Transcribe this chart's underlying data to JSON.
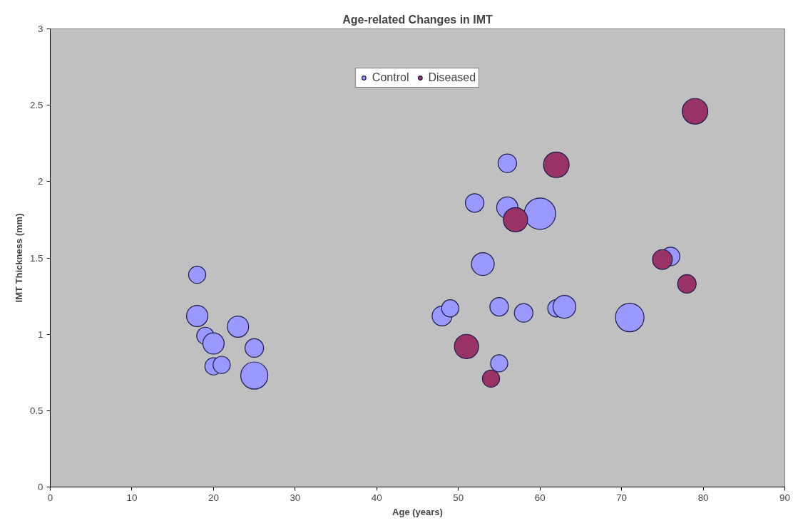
{
  "chart_data": {
    "type": "bubble",
    "title": "Age-related Changes in IMT",
    "xlabel": "Age (years)",
    "ylabel": "IMT Thickness (mm)",
    "xlim": [
      0,
      90
    ],
    "xticks": [
      0,
      10,
      20,
      30,
      40,
      50,
      60,
      70,
      80,
      90
    ],
    "ylim": [
      0,
      3
    ],
    "yticks": [
      0,
      0.5,
      1,
      1.5,
      2,
      2.5,
      3
    ],
    "grid": false,
    "legend": "top",
    "series": [
      {
        "name": "Control",
        "color": "#9999ff",
        "x": [
          18,
          18,
          19,
          20,
          20,
          21,
          23,
          25,
          25,
          48,
          49,
          52,
          53,
          55,
          55,
          56,
          56,
          58,
          60,
          62,
          63,
          71,
          76
        ],
        "values": [
          1.39,
          1.12,
          0.99,
          0.94,
          0.79,
          0.8,
          1.05,
          0.91,
          0.73,
          1.12,
          1.17,
          1.86,
          1.46,
          1.18,
          0.81,
          2.12,
          1.83,
          1.14,
          1.79,
          1.17,
          1.18,
          1.11,
          1.51
        ],
        "sizes": [
          0.3,
          0.46,
          0.3,
          0.46,
          0.3,
          0.3,
          0.46,
          0.35,
          0.75,
          0.4,
          0.3,
          0.35,
          0.53,
          0.35,
          0.3,
          0.35,
          0.46,
          0.35,
          1,
          0.3,
          0.53,
          0.83,
          0.35
        ]
      },
      {
        "name": "Diseased",
        "color": "#993366",
        "x": [
          51,
          54,
          57,
          62,
          75,
          78,
          79
        ],
        "values": [
          0.92,
          0.71,
          1.75,
          2.11,
          1.49,
          1.33,
          2.46
        ],
        "sizes": [
          0.6,
          0.3,
          0.6,
          0.67,
          0.4,
          0.35,
          0.67
        ]
      }
    ]
  }
}
